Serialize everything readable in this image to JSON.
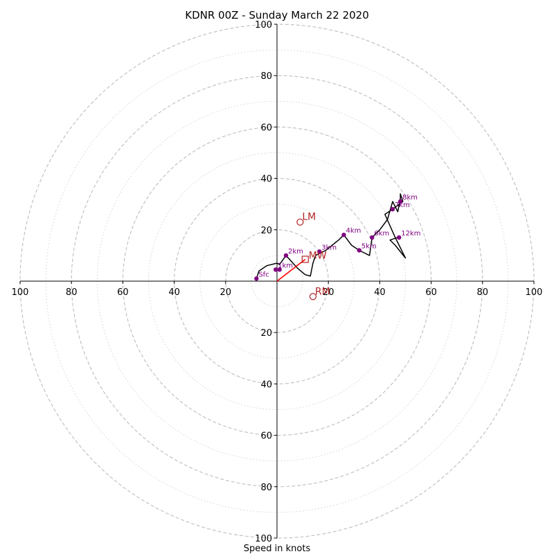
{
  "chart_data": {
    "type": "hodograph",
    "title": "KDNR 00Z - Sunday March 22 2020",
    "xlabel": "Speed in knots",
    "range": [
      -100,
      100
    ],
    "ring_major": [
      20,
      40,
      60,
      80,
      100
    ],
    "ring_minor": [
      10,
      30,
      50,
      70,
      90
    ],
    "tick_labels": {
      "x_left": [
        "100",
        "80",
        "60",
        "40",
        "20"
      ],
      "x_right": [
        "20",
        "40",
        "60",
        "80",
        "100"
      ],
      "y_top": [
        "20",
        "40",
        "60",
        "80",
        "100"
      ],
      "y_bottom": [
        "20",
        "40",
        "60",
        "80",
        "100"
      ]
    },
    "grid": true,
    "trace": [
      [
        -8,
        1
      ],
      [
        -7,
        4
      ],
      [
        -4,
        6
      ],
      [
        0,
        7
      ],
      [
        1,
        6.5
      ],
      [
        3.5,
        10
      ],
      [
        8,
        5
      ],
      [
        11,
        2.5
      ],
      [
        13,
        2
      ],
      [
        14,
        7
      ],
      [
        15,
        10
      ],
      [
        17,
        11
      ],
      [
        19,
        12
      ],
      [
        24,
        16
      ],
      [
        26,
        18
      ],
      [
        29,
        14
      ],
      [
        32,
        12
      ],
      [
        36,
        10
      ],
      [
        37,
        17
      ],
      [
        40,
        20
      ],
      [
        43,
        24
      ],
      [
        45,
        31
      ],
      [
        47,
        27
      ],
      [
        48,
        32
      ],
      [
        48,
        34
      ],
      [
        49,
        31
      ],
      [
        45,
        28
      ],
      [
        42,
        26
      ],
      [
        46,
        17
      ],
      [
        50,
        9
      ],
      [
        46,
        14
      ],
      [
        44,
        16
      ],
      [
        47,
        17
      ]
    ],
    "height_markers": [
      {
        "label": "Sfc",
        "u": -8,
        "v": 1
      },
      {
        "label": "1km",
        "u": -0.5,
        "v": 4.5
      },
      {
        "label": "2km",
        "u": 3.5,
        "v": 10
      },
      {
        "label": "3km",
        "u": 16.5,
        "v": 11.5
      },
      {
        "label": "4km",
        "u": 26,
        "v": 18
      },
      {
        "label": "5km",
        "u": 32,
        "v": 12
      },
      {
        "label": "6km",
        "u": 37,
        "v": 17
      },
      {
        "label": "7km",
        "u": 45,
        "v": 28
      },
      {
        "label": "8km",
        "u": 48,
        "v": 31
      },
      {
        "label": "12km",
        "u": 47.5,
        "v": 17
      }
    ],
    "extra_marker": {
      "u": 1,
      "v": 4.5
    },
    "motions": {
      "LM": {
        "label": "LM",
        "u": 9,
        "v": 23
      },
      "RM": {
        "label": "RM",
        "u": 14,
        "v": -6
      },
      "MW": {
        "label": "MW",
        "u": 11,
        "v": 8.5
      }
    },
    "shear_vector": {
      "u0": 0,
      "v0": 0,
      "u1": 11,
      "v1": 8.5
    },
    "colors": {
      "trace": "#000000",
      "markers": "#800080",
      "motion": "#b22222",
      "shear": "#ff0000",
      "ring_major": "#bdbdbd",
      "ring_minor": "#d3d3d3"
    }
  }
}
